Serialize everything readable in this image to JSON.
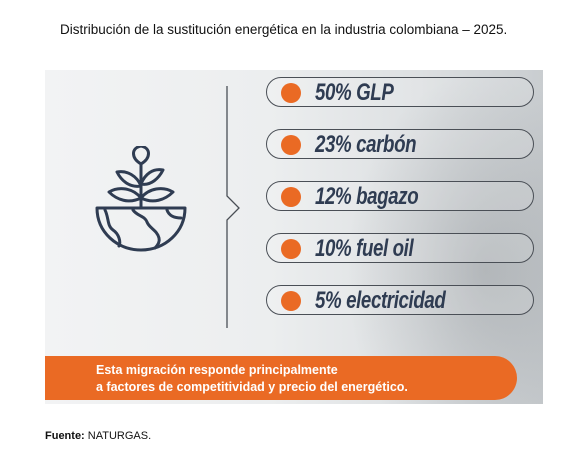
{
  "title": "Distribución de la sustitución energética en la industria colombiana – 2025.",
  "chart_data": {
    "type": "table",
    "categories": [
      "GLP",
      "carbón",
      "bagazo",
      "fuel oil",
      "electricidad"
    ],
    "values": [
      50,
      23,
      12,
      10,
      5
    ],
    "unit": "%",
    "labels": [
      "50% GLP",
      "23% carbón",
      "12% bagazo",
      "10% fuel oil",
      "5% electricidad"
    ]
  },
  "banner": {
    "line1": "Esta migración responde principalmente",
    "line2": "a factores de competitividad y precio del energético."
  },
  "source": {
    "label": "Fuente:",
    "value": "NATURGAS."
  },
  "colors": {
    "accent": "#ea6a24",
    "text_dark": "#2f3c52",
    "outline": "#4a4f56"
  },
  "icons": {
    "main": "plant-globe-icon"
  }
}
